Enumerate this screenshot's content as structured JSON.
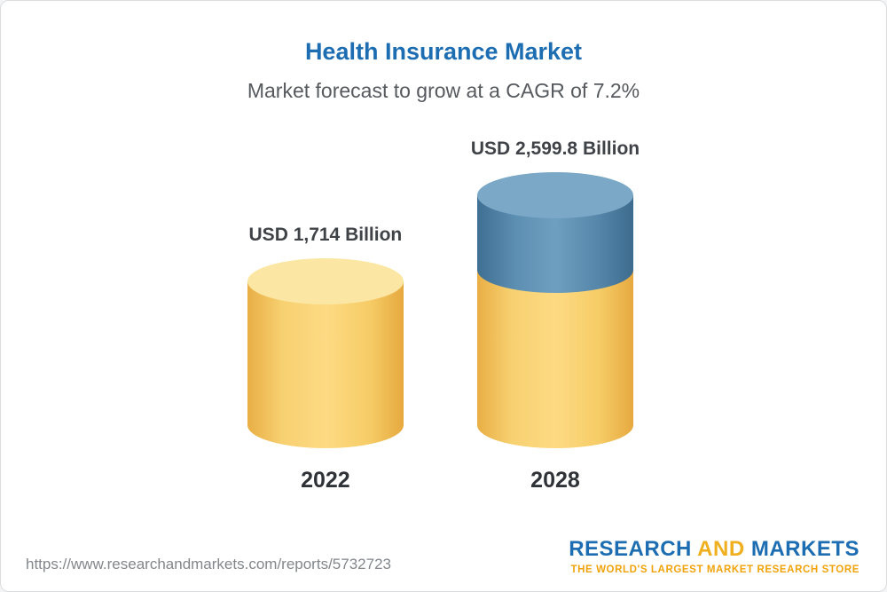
{
  "page": {
    "title": "Health Insurance Market",
    "subtitle": "Market forecast to grow at a CAGR of 7.2%"
  },
  "chart_data": {
    "type": "bar",
    "title": "Health Insurance Market",
    "subtitle": "Market forecast to grow at a CAGR of 7.2%",
    "categories": [
      "2022",
      "2028"
    ],
    "values": [
      1714,
      2599.8
    ],
    "value_labels": [
      "USD 1,714 Billion",
      "USD 2,599.8 Billion"
    ],
    "unit": "USD Billion",
    "cagr": "7.2%",
    "legend_position": "none",
    "grid": false,
    "colors": {
      "base_segment": "#f9cf66",
      "base_segment_cap": "#fbe7a3",
      "growth_segment": "#6e9fc0",
      "growth_segment_cap": "#7aa8c6",
      "title": "#1d6db2"
    }
  },
  "footer": {
    "url": "https://www.researchandmarkets.com/reports/5732723",
    "logo": {
      "research": "RESEARCH",
      "and": "AND",
      "markets": "MARKETS",
      "tagline": "THE WORLD'S LARGEST MARKET RESEARCH STORE"
    }
  }
}
